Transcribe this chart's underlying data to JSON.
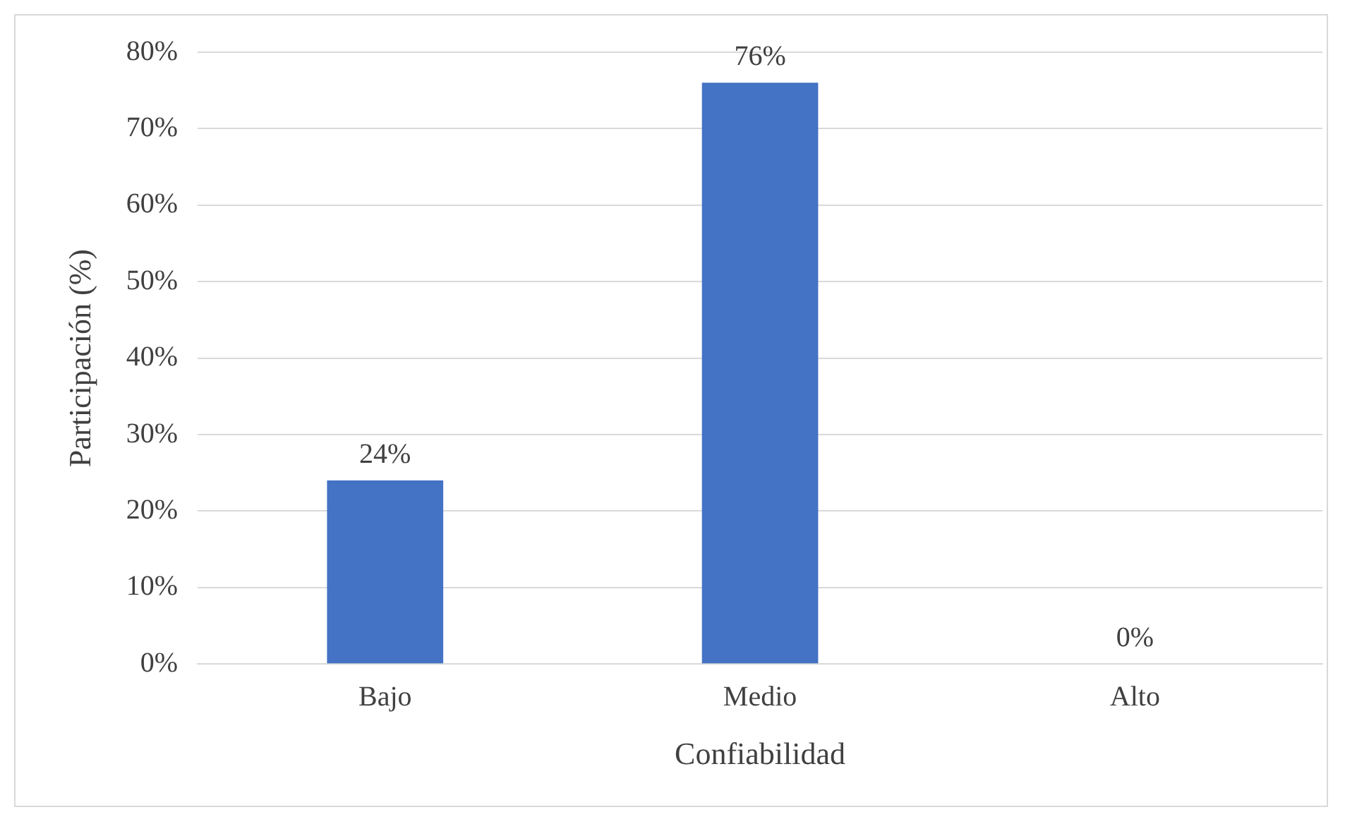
{
  "chart_data": {
    "type": "bar",
    "xlabel": "Confiabilidad",
    "ylabel": "Participación (%)",
    "categories": [
      "Bajo",
      "Medio",
      "Alto"
    ],
    "values": [
      24,
      76,
      0
    ],
    "color": "#4472c4",
    "value_labels": [
      "24%",
      "76%",
      "0%"
    ],
    "ylim": [
      0,
      80
    ],
    "yticks": [
      {
        "value": 0,
        "label": "0%"
      },
      {
        "value": 10,
        "label": "10%"
      },
      {
        "value": 20,
        "label": "20%"
      },
      {
        "value": 30,
        "label": "30%"
      },
      {
        "value": 40,
        "label": "40%"
      },
      {
        "value": 50,
        "label": "50%"
      },
      {
        "value": 60,
        "label": "60%"
      },
      {
        "value": 70,
        "label": "70%"
      },
      {
        "value": 80,
        "label": "80%"
      }
    ],
    "grid": "y",
    "legend": false
  }
}
